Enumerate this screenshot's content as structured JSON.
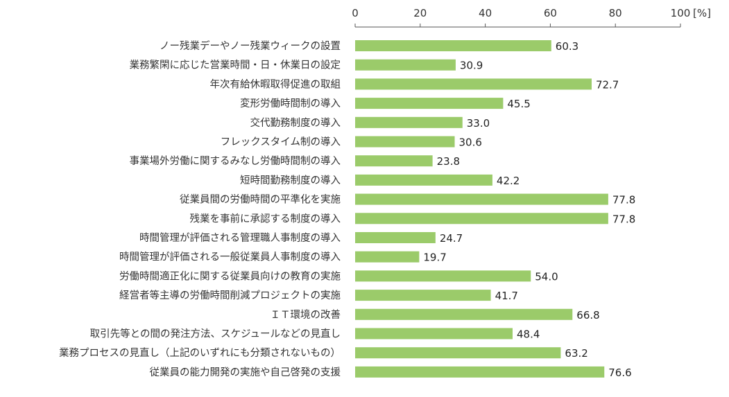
{
  "chart_data": {
    "type": "bar",
    "orientation": "horizontal",
    "categories": [
      "ノー残業デーやノー残業ウィークの設置",
      "業務繁閑に応じた営業時間・日・休業日の設定",
      "年次有給休暇取得促進の取組",
      "変形労働時間制の導入",
      "交代勤務制度の導入",
      "フレックスタイム制の導入",
      "事業場外労働に関するみなし労働時間制の導入",
      "短時間勤務制度の導入",
      "従業員間の労働時間の平準化を実施",
      "残業を事前に承認する制度の導入",
      "時間管理が評価される管理職人事制度の導入",
      "時間管理が評価される一般従業員人事制度の導入",
      "労働時間適正化に関する従業員向けの教育の実施",
      "経営者等主導の労働時間削減プロジェクトの実施",
      "ＩＴ環境の改善",
      "取引先等との間の発注方法、スケジュールなどの見直し",
      "業務プロセスの見直し（上記のいずれにも分類されないもの）",
      "従業員の能力開発の実施や自己啓発の支援"
    ],
    "values": [
      60.3,
      30.9,
      72.7,
      45.5,
      33.0,
      30.6,
      23.8,
      42.2,
      77.8,
      77.8,
      24.7,
      19.7,
      54.0,
      41.7,
      66.8,
      48.4,
      63.2,
      76.6
    ],
    "value_labels": [
      "60.3",
      "30.9",
      "72.7",
      "45.5",
      "33.0",
      "30.6",
      "23.8",
      "42.2",
      "77.8",
      "77.8",
      "24.7",
      "19.7",
      "54.0",
      "41.7",
      "66.8",
      "48.4",
      "63.2",
      "76.6"
    ],
    "xlim": [
      0,
      100
    ],
    "xticks": [
      "0",
      "20",
      "40",
      "60",
      "80",
      "100"
    ],
    "unit": "[%]",
    "axis_position": "top",
    "grid": false,
    "bar_color": "#9bcb6a"
  }
}
